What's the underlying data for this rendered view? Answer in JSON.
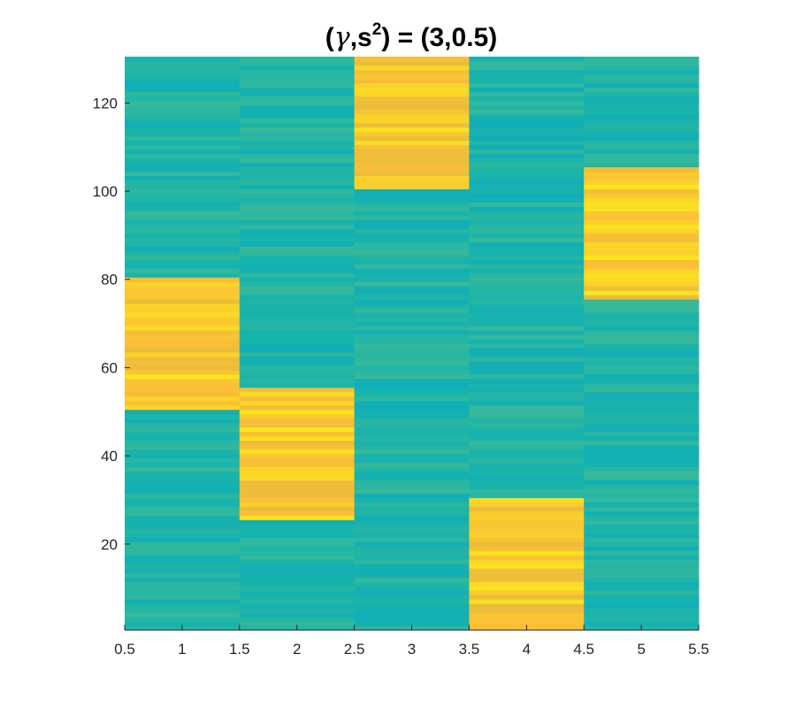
{
  "chart_data": {
    "type": "heatmap",
    "title": {
      "pre": "(",
      "gamma": "γ",
      "comma": ",s",
      "sup": "2",
      "post": ") = (3,0.5)"
    },
    "xlabel": "",
    "ylabel": "",
    "xlim": [
      0.5,
      5.5
    ],
    "ylim": [
      0.5,
      130.5
    ],
    "x_ticks": [
      0.5,
      1,
      1.5,
      2,
      2.5,
      3,
      3.5,
      4,
      4.5,
      5,
      5.5
    ],
    "x_tick_labels": [
      "0.5",
      "1",
      "1.5",
      "2",
      "2.5",
      "3",
      "3.5",
      "4",
      "4.5",
      "5",
      "5.5"
    ],
    "y_ticks": [
      20,
      40,
      60,
      80,
      100,
      120
    ],
    "y_tick_labels": [
      "20",
      "40",
      "60",
      "80",
      "100",
      "120"
    ],
    "columns": [
      1,
      2,
      3,
      4,
      5
    ],
    "rows": 130,
    "colormap": "parula",
    "color_range": [
      0,
      1
    ],
    "grid": false,
    "high_blocks": [
      {
        "column": 1,
        "row_from": 51,
        "row_to": 80
      },
      {
        "column": 2,
        "row_from": 26,
        "row_to": 55
      },
      {
        "column": 3,
        "row_from": 101,
        "row_to": 130
      },
      {
        "column": 4,
        "row_from": 1,
        "row_to": 30
      },
      {
        "column": 5,
        "row_from": 76,
        "row_to": 105
      }
    ],
    "background_level": 0.5,
    "block_level": 0.9
  }
}
